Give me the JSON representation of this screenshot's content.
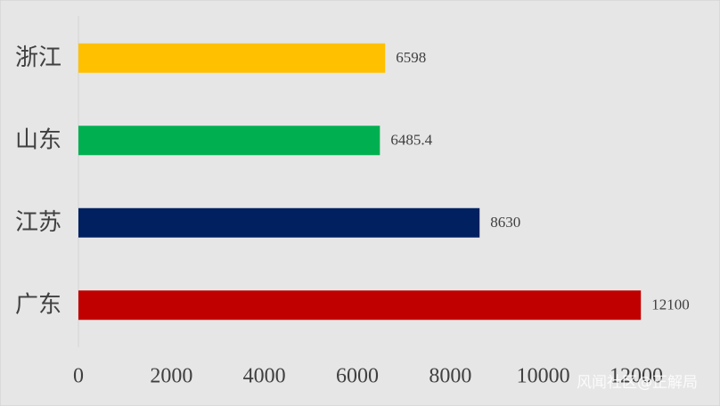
{
  "chart_data": {
    "type": "barh",
    "categories": [
      "浙江",
      "山东",
      "江苏",
      "广东"
    ],
    "values": [
      6598,
      6485.4,
      8630,
      12100
    ],
    "colors": [
      "#ffc000",
      "#00b050",
      "#002060",
      "#c00000"
    ],
    "xlim": [
      0,
      12000
    ],
    "xticks": [
      0,
      2000,
      4000,
      6000,
      8000,
      10000,
      12000
    ],
    "watermark": "风闻社区@正解局"
  }
}
